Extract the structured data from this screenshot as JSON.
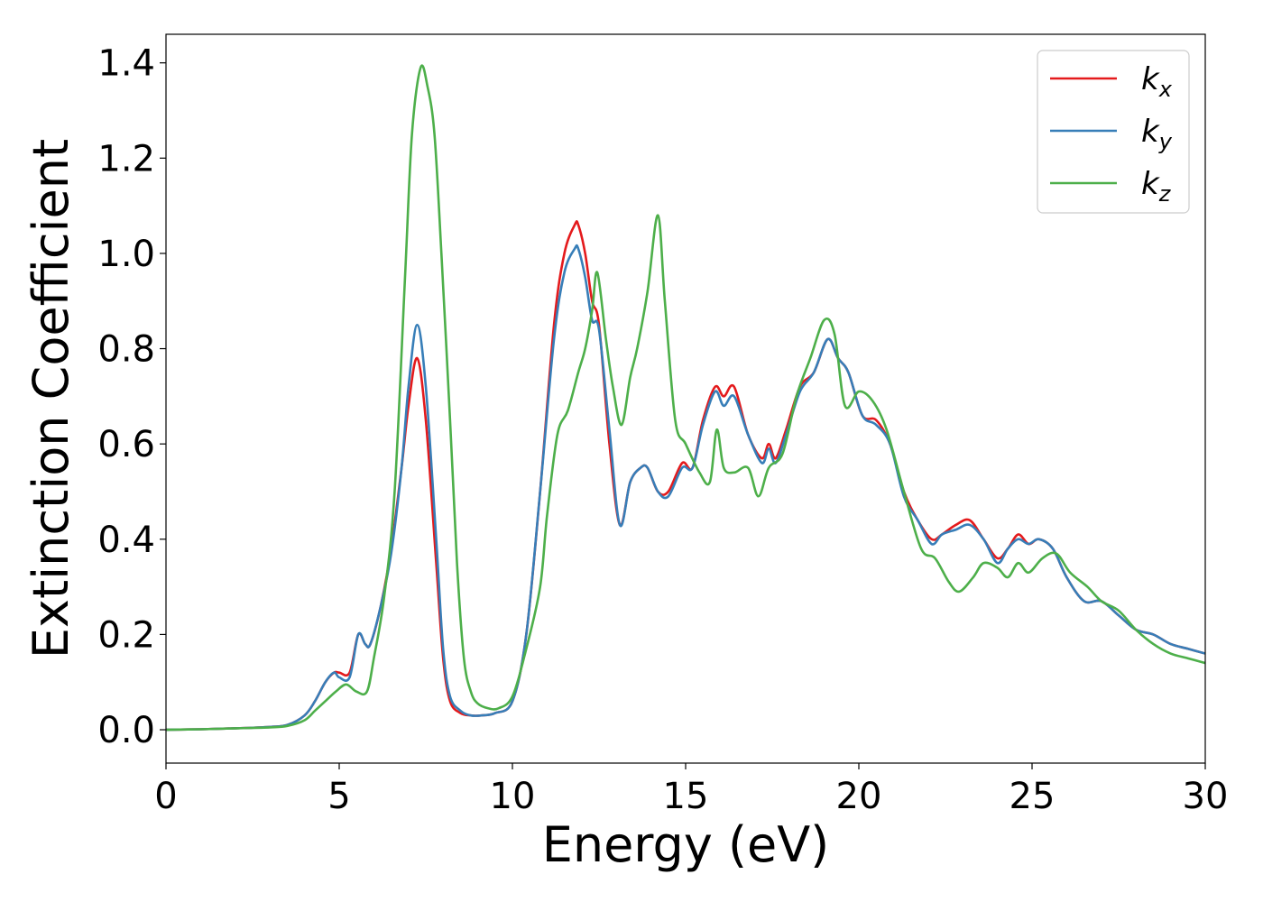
{
  "chart_data": {
    "type": "line",
    "title": "",
    "xlabel": "Energy (eV)",
    "ylabel": "Extinction Coefficient",
    "xlim": [
      0,
      30
    ],
    "ylim": [
      -0.07,
      1.46
    ],
    "xticks": [
      0,
      5,
      10,
      15,
      20,
      25,
      30
    ],
    "xtick_labels": [
      "0",
      "5",
      "10",
      "15",
      "20",
      "25",
      "30"
    ],
    "yticks": [
      0.0,
      0.2,
      0.4,
      0.6,
      0.8,
      1.0,
      1.2,
      1.4
    ],
    "ytick_labels": [
      "0.0",
      "0.2",
      "0.4",
      "0.6",
      "0.8",
      "1.0",
      "1.2",
      "1.4"
    ],
    "grid": false,
    "legend_position": "top-right",
    "series": [
      {
        "name": "k_x",
        "legend_base": "k",
        "legend_sub": "x",
        "color": "#e41a1c",
        "x": [
          0,
          1,
          2,
          3,
          3.5,
          4,
          4.3,
          4.6,
          4.85,
          5.0,
          5.3,
          5.55,
          5.75,
          5.9,
          6.2,
          6.5,
          6.8,
          7.0,
          7.25,
          7.5,
          7.8,
          8.0,
          8.2,
          8.5,
          8.8,
          9.1,
          9.5,
          10.0,
          10.4,
          10.8,
          11.2,
          11.5,
          11.8,
          11.9,
          12.1,
          12.3,
          12.5,
          12.8,
          13.1,
          13.4,
          13.7,
          13.9,
          14.2,
          14.5,
          14.9,
          15.2,
          15.5,
          15.85,
          16.1,
          16.4,
          16.8,
          17.2,
          17.4,
          17.6,
          17.9,
          18.3,
          18.7,
          19.1,
          19.4,
          19.7,
          20.1,
          20.5,
          20.9,
          21.3,
          21.7,
          22.1,
          22.4,
          22.8,
          23.2,
          23.6,
          24.0,
          24.3,
          24.6,
          24.9,
          25.2,
          25.6,
          26.0,
          26.5,
          27.0,
          27.5,
          28.0,
          28.5,
          29.0,
          29.5,
          30.0
        ],
        "y": [
          0.0,
          0.001,
          0.003,
          0.006,
          0.01,
          0.03,
          0.06,
          0.1,
          0.12,
          0.12,
          0.12,
          0.2,
          0.18,
          0.18,
          0.26,
          0.38,
          0.55,
          0.68,
          0.78,
          0.65,
          0.35,
          0.15,
          0.06,
          0.035,
          0.03,
          0.03,
          0.035,
          0.06,
          0.2,
          0.5,
          0.85,
          1.0,
          1.06,
          1.06,
          1.0,
          0.9,
          0.85,
          0.6,
          0.43,
          0.52,
          0.55,
          0.55,
          0.5,
          0.5,
          0.56,
          0.55,
          0.65,
          0.72,
          0.7,
          0.72,
          0.62,
          0.57,
          0.6,
          0.57,
          0.63,
          0.72,
          0.75,
          0.82,
          0.78,
          0.75,
          0.66,
          0.65,
          0.6,
          0.5,
          0.44,
          0.4,
          0.41,
          0.43,
          0.44,
          0.4,
          0.36,
          0.38,
          0.41,
          0.39,
          0.4,
          0.38,
          0.32,
          0.27,
          0.27,
          0.24,
          0.21,
          0.2,
          0.18,
          0.17,
          0.16
        ]
      },
      {
        "name": "k_y",
        "legend_base": "k",
        "legend_sub": "y",
        "color": "#377eb8",
        "x": [
          0,
          1,
          2,
          3,
          3.5,
          4,
          4.3,
          4.6,
          4.85,
          5.0,
          5.3,
          5.55,
          5.75,
          5.9,
          6.2,
          6.5,
          6.8,
          7.0,
          7.25,
          7.5,
          7.8,
          8.0,
          8.2,
          8.5,
          8.8,
          9.1,
          9.5,
          10.0,
          10.4,
          10.8,
          11.2,
          11.5,
          11.8,
          11.9,
          12.1,
          12.3,
          12.5,
          12.8,
          13.1,
          13.4,
          13.7,
          13.9,
          14.2,
          14.5,
          14.9,
          15.2,
          15.5,
          15.85,
          16.1,
          16.4,
          16.8,
          17.2,
          17.4,
          17.6,
          17.9,
          18.3,
          18.7,
          19.1,
          19.4,
          19.7,
          20.1,
          20.5,
          20.9,
          21.3,
          21.7,
          22.1,
          22.4,
          22.8,
          23.2,
          23.6,
          24.0,
          24.3,
          24.6,
          24.9,
          25.2,
          25.6,
          26.0,
          26.5,
          27.0,
          27.5,
          28.0,
          28.5,
          29.0,
          29.5,
          30.0
        ],
        "y": [
          0.0,
          0.001,
          0.003,
          0.006,
          0.01,
          0.03,
          0.06,
          0.1,
          0.12,
          0.11,
          0.11,
          0.2,
          0.18,
          0.18,
          0.26,
          0.37,
          0.55,
          0.72,
          0.85,
          0.72,
          0.4,
          0.17,
          0.07,
          0.04,
          0.03,
          0.03,
          0.035,
          0.06,
          0.2,
          0.5,
          0.82,
          0.96,
          1.01,
          1.01,
          0.95,
          0.86,
          0.84,
          0.63,
          0.43,
          0.52,
          0.55,
          0.55,
          0.5,
          0.49,
          0.55,
          0.55,
          0.64,
          0.71,
          0.68,
          0.7,
          0.62,
          0.56,
          0.59,
          0.56,
          0.62,
          0.71,
          0.75,
          0.82,
          0.78,
          0.75,
          0.66,
          0.64,
          0.6,
          0.49,
          0.44,
          0.39,
          0.41,
          0.42,
          0.43,
          0.4,
          0.35,
          0.38,
          0.4,
          0.39,
          0.4,
          0.38,
          0.32,
          0.27,
          0.27,
          0.24,
          0.21,
          0.2,
          0.18,
          0.17,
          0.16
        ]
      },
      {
        "name": "k_z",
        "legend_base": "k",
        "legend_sub": "z",
        "color": "#4daf4a",
        "x": [
          0,
          1,
          2,
          3,
          3.5,
          4,
          4.3,
          4.6,
          4.9,
          5.2,
          5.5,
          5.8,
          6.0,
          6.3,
          6.6,
          6.9,
          7.1,
          7.35,
          7.55,
          7.75,
          7.95,
          8.2,
          8.4,
          8.6,
          8.8,
          9.0,
          9.3,
          9.6,
          10.0,
          10.4,
          10.8,
          11.0,
          11.3,
          11.6,
          11.9,
          12.1,
          12.3,
          12.45,
          12.7,
          12.9,
          13.15,
          13.4,
          13.6,
          13.9,
          14.2,
          14.4,
          14.7,
          15.0,
          15.4,
          15.7,
          15.9,
          16.1,
          16.4,
          16.8,
          17.1,
          17.4,
          17.8,
          18.2,
          18.6,
          19.0,
          19.3,
          19.6,
          20.0,
          20.4,
          20.8,
          21.3,
          21.8,
          22.2,
          22.6,
          22.9,
          23.3,
          23.6,
          24.0,
          24.3,
          24.6,
          24.9,
          25.3,
          25.7,
          26.1,
          26.6,
          27.0,
          27.5,
          28.0,
          28.5,
          29.0,
          29.5,
          30.0
        ],
        "y": [
          0.0,
          0.001,
          0.003,
          0.005,
          0.008,
          0.02,
          0.04,
          0.06,
          0.08,
          0.095,
          0.08,
          0.08,
          0.15,
          0.28,
          0.5,
          0.95,
          1.25,
          1.39,
          1.35,
          1.25,
          1.0,
          0.65,
          0.35,
          0.15,
          0.08,
          0.055,
          0.045,
          0.045,
          0.07,
          0.17,
          0.3,
          0.45,
          0.62,
          0.67,
          0.75,
          0.8,
          0.88,
          0.96,
          0.82,
          0.72,
          0.64,
          0.74,
          0.8,
          0.92,
          1.08,
          0.9,
          0.65,
          0.6,
          0.54,
          0.52,
          0.63,
          0.55,
          0.54,
          0.55,
          0.49,
          0.55,
          0.58,
          0.7,
          0.78,
          0.86,
          0.83,
          0.68,
          0.71,
          0.69,
          0.63,
          0.5,
          0.38,
          0.36,
          0.31,
          0.29,
          0.32,
          0.35,
          0.34,
          0.32,
          0.35,
          0.33,
          0.36,
          0.37,
          0.33,
          0.3,
          0.27,
          0.25,
          0.21,
          0.18,
          0.16,
          0.15,
          0.14
        ]
      }
    ]
  }
}
